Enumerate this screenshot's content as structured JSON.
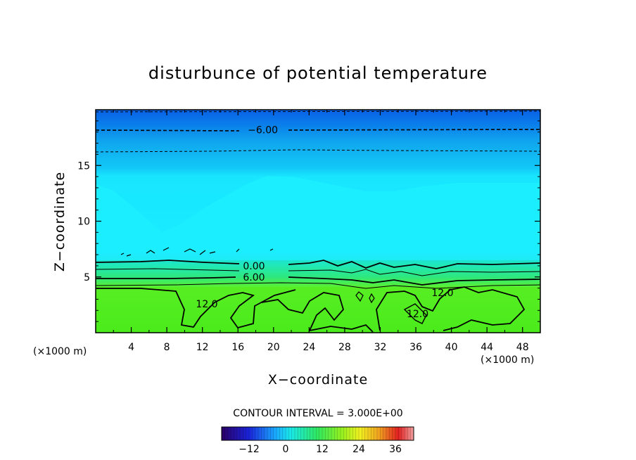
{
  "chart_data": {
    "type": "heatmap",
    "title": "disturbunce of potential temperature",
    "xlabel": "X−coordinate",
    "ylabel": "Z−coordinate",
    "x_unit": "(×1000 m)",
    "y_unit": "(×1000 m)",
    "xlim": [
      0,
      50
    ],
    "ylim": [
      0,
      20
    ],
    "x_ticks": [
      4,
      8,
      12,
      16,
      20,
      24,
      28,
      32,
      36,
      40,
      44,
      48
    ],
    "y_ticks": [
      5,
      10,
      15
    ],
    "contour_interval_text": "CONTOUR INTERVAL = 3.000E+00",
    "contour_labels": [
      {
        "text": "−6.00",
        "x": 18.8,
        "z": 18.2
      },
      {
        "text": "0.00",
        "x": 17.8,
        "z": 6.0
      },
      {
        "text": "6.00",
        "x": 17.8,
        "z": 5.0
      },
      {
        "text": "12.0",
        "x": 12.5,
        "z": 2.6
      },
      {
        "text": "12.0",
        "x": 39.0,
        "z": 3.6
      },
      {
        "text": "12.0",
        "x": 36.2,
        "z": 1.7
      }
    ],
    "colorbar": {
      "min": -21,
      "max": 42,
      "tick_values": [
        -12,
        0,
        12,
        24,
        36
      ],
      "tick_labels": [
        "−12",
        "0",
        "12",
        "24",
        "36"
      ]
    },
    "field": {
      "description_levels": [
        {
          "z": 0,
          "value": 13.5
        },
        {
          "z": 4,
          "value": 12.5
        },
        {
          "z": 5,
          "value": 6.0
        },
        {
          "z": 6.2,
          "value": 0.0
        },
        {
          "z": 7,
          "value": -2.5
        },
        {
          "z": 15,
          "value": -3.5
        },
        {
          "z": 18,
          "value": -6.0
        },
        {
          "z": 20,
          "value": -9.0
        }
      ]
    }
  }
}
